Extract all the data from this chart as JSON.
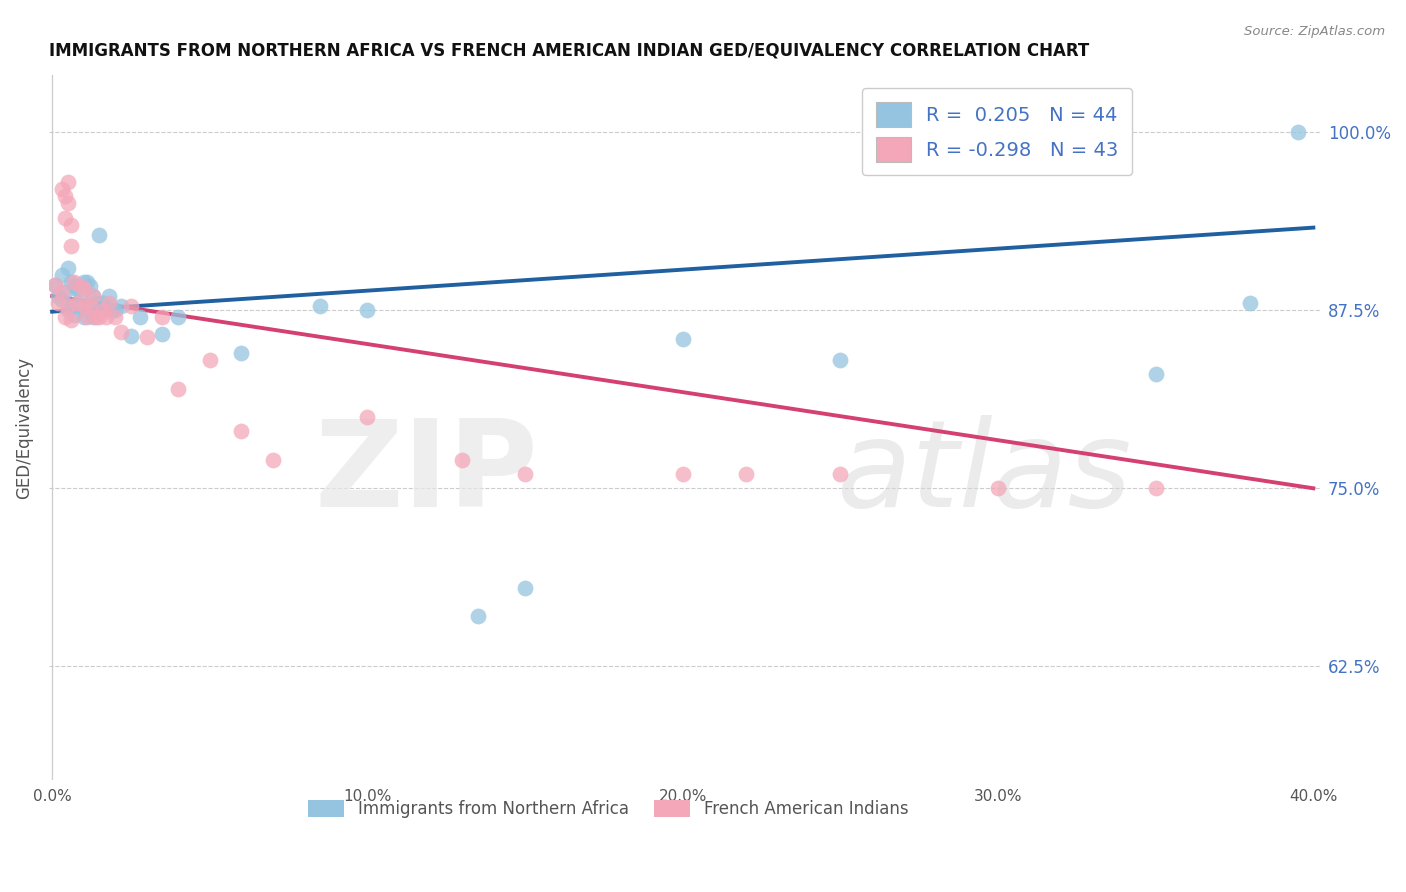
{
  "title": "IMMIGRANTS FROM NORTHERN AFRICA VS FRENCH AMERICAN INDIAN GED/EQUIVALENCY CORRELATION CHART",
  "source": "Source: ZipAtlas.com",
  "ylabel": "GED/Equivalency",
  "right_ytick_labels": [
    "100.0%",
    "87.5%",
    "75.0%",
    "62.5%"
  ],
  "right_ytick_values": [
    1.0,
    0.875,
    0.75,
    0.625
  ],
  "xlim": [
    -0.001,
    0.402
  ],
  "ylim": [
    0.545,
    1.04
  ],
  "xticks": [
    0.0,
    0.1,
    0.2,
    0.3,
    0.4
  ],
  "xtick_labels": [
    "0.0%",
    "10.0%",
    "20.0%",
    "30.0%",
    "40.0%"
  ],
  "legend1_r": "0.205",
  "legend1_n": "44",
  "legend2_r": "-0.298",
  "legend2_n": "43",
  "bottom_legend1": "Immigrants from Northern Africa",
  "bottom_legend2": "French American Indians",
  "blue_color": "#94c4e0",
  "pink_color": "#f4a7b9",
  "blue_line_color": "#2060a0",
  "pink_line_color": "#d44070",
  "blue_x": [
    0.001,
    0.002,
    0.003,
    0.003,
    0.004,
    0.005,
    0.005,
    0.006,
    0.006,
    0.007,
    0.007,
    0.008,
    0.008,
    0.009,
    0.01,
    0.01,
    0.011,
    0.011,
    0.012,
    0.012,
    0.013,
    0.013,
    0.014,
    0.015,
    0.016,
    0.017,
    0.018,
    0.019,
    0.02,
    0.022,
    0.025,
    0.028,
    0.035,
    0.04,
    0.06,
    0.085,
    0.1,
    0.135,
    0.15,
    0.2,
    0.25,
    0.35,
    0.38,
    0.395
  ],
  "blue_y": [
    0.893,
    0.885,
    0.9,
    0.882,
    0.888,
    0.905,
    0.875,
    0.895,
    0.878,
    0.892,
    0.872,
    0.89,
    0.878,
    0.886,
    0.895,
    0.87,
    0.895,
    0.875,
    0.892,
    0.878,
    0.885,
    0.87,
    0.88,
    0.928,
    0.88,
    0.876,
    0.885,
    0.875,
    0.875,
    0.878,
    0.857,
    0.87,
    0.858,
    0.87,
    0.845,
    0.878,
    0.875,
    0.66,
    0.68,
    0.855,
    0.84,
    0.83,
    0.88,
    1.0
  ],
  "pink_x": [
    0.001,
    0.002,
    0.003,
    0.003,
    0.004,
    0.004,
    0.005,
    0.005,
    0.006,
    0.006,
    0.007,
    0.008,
    0.009,
    0.01,
    0.01,
    0.011,
    0.012,
    0.013,
    0.014,
    0.015,
    0.016,
    0.017,
    0.018,
    0.02,
    0.022,
    0.025,
    0.03,
    0.035,
    0.04,
    0.05,
    0.06,
    0.07,
    0.1,
    0.13,
    0.15,
    0.2,
    0.22,
    0.25,
    0.3,
    0.35,
    0.004,
    0.005,
    0.006
  ],
  "pink_y": [
    0.893,
    0.88,
    0.888,
    0.96,
    0.955,
    0.94,
    0.965,
    0.95,
    0.935,
    0.92,
    0.895,
    0.88,
    0.892,
    0.878,
    0.89,
    0.87,
    0.878,
    0.885,
    0.87,
    0.87,
    0.875,
    0.87,
    0.88,
    0.87,
    0.86,
    0.878,
    0.856,
    0.87,
    0.82,
    0.84,
    0.79,
    0.77,
    0.8,
    0.77,
    0.76,
    0.76,
    0.76,
    0.76,
    0.75,
    0.75,
    0.87,
    0.878,
    0.868
  ],
  "blue_line_x0": 0.0,
  "blue_line_x1": 0.4,
  "blue_line_y0": 0.874,
  "blue_line_y1": 0.933,
  "pink_line_x0": 0.0,
  "pink_line_x1": 0.4,
  "pink_line_y0": 0.885,
  "pink_line_y1": 0.75
}
